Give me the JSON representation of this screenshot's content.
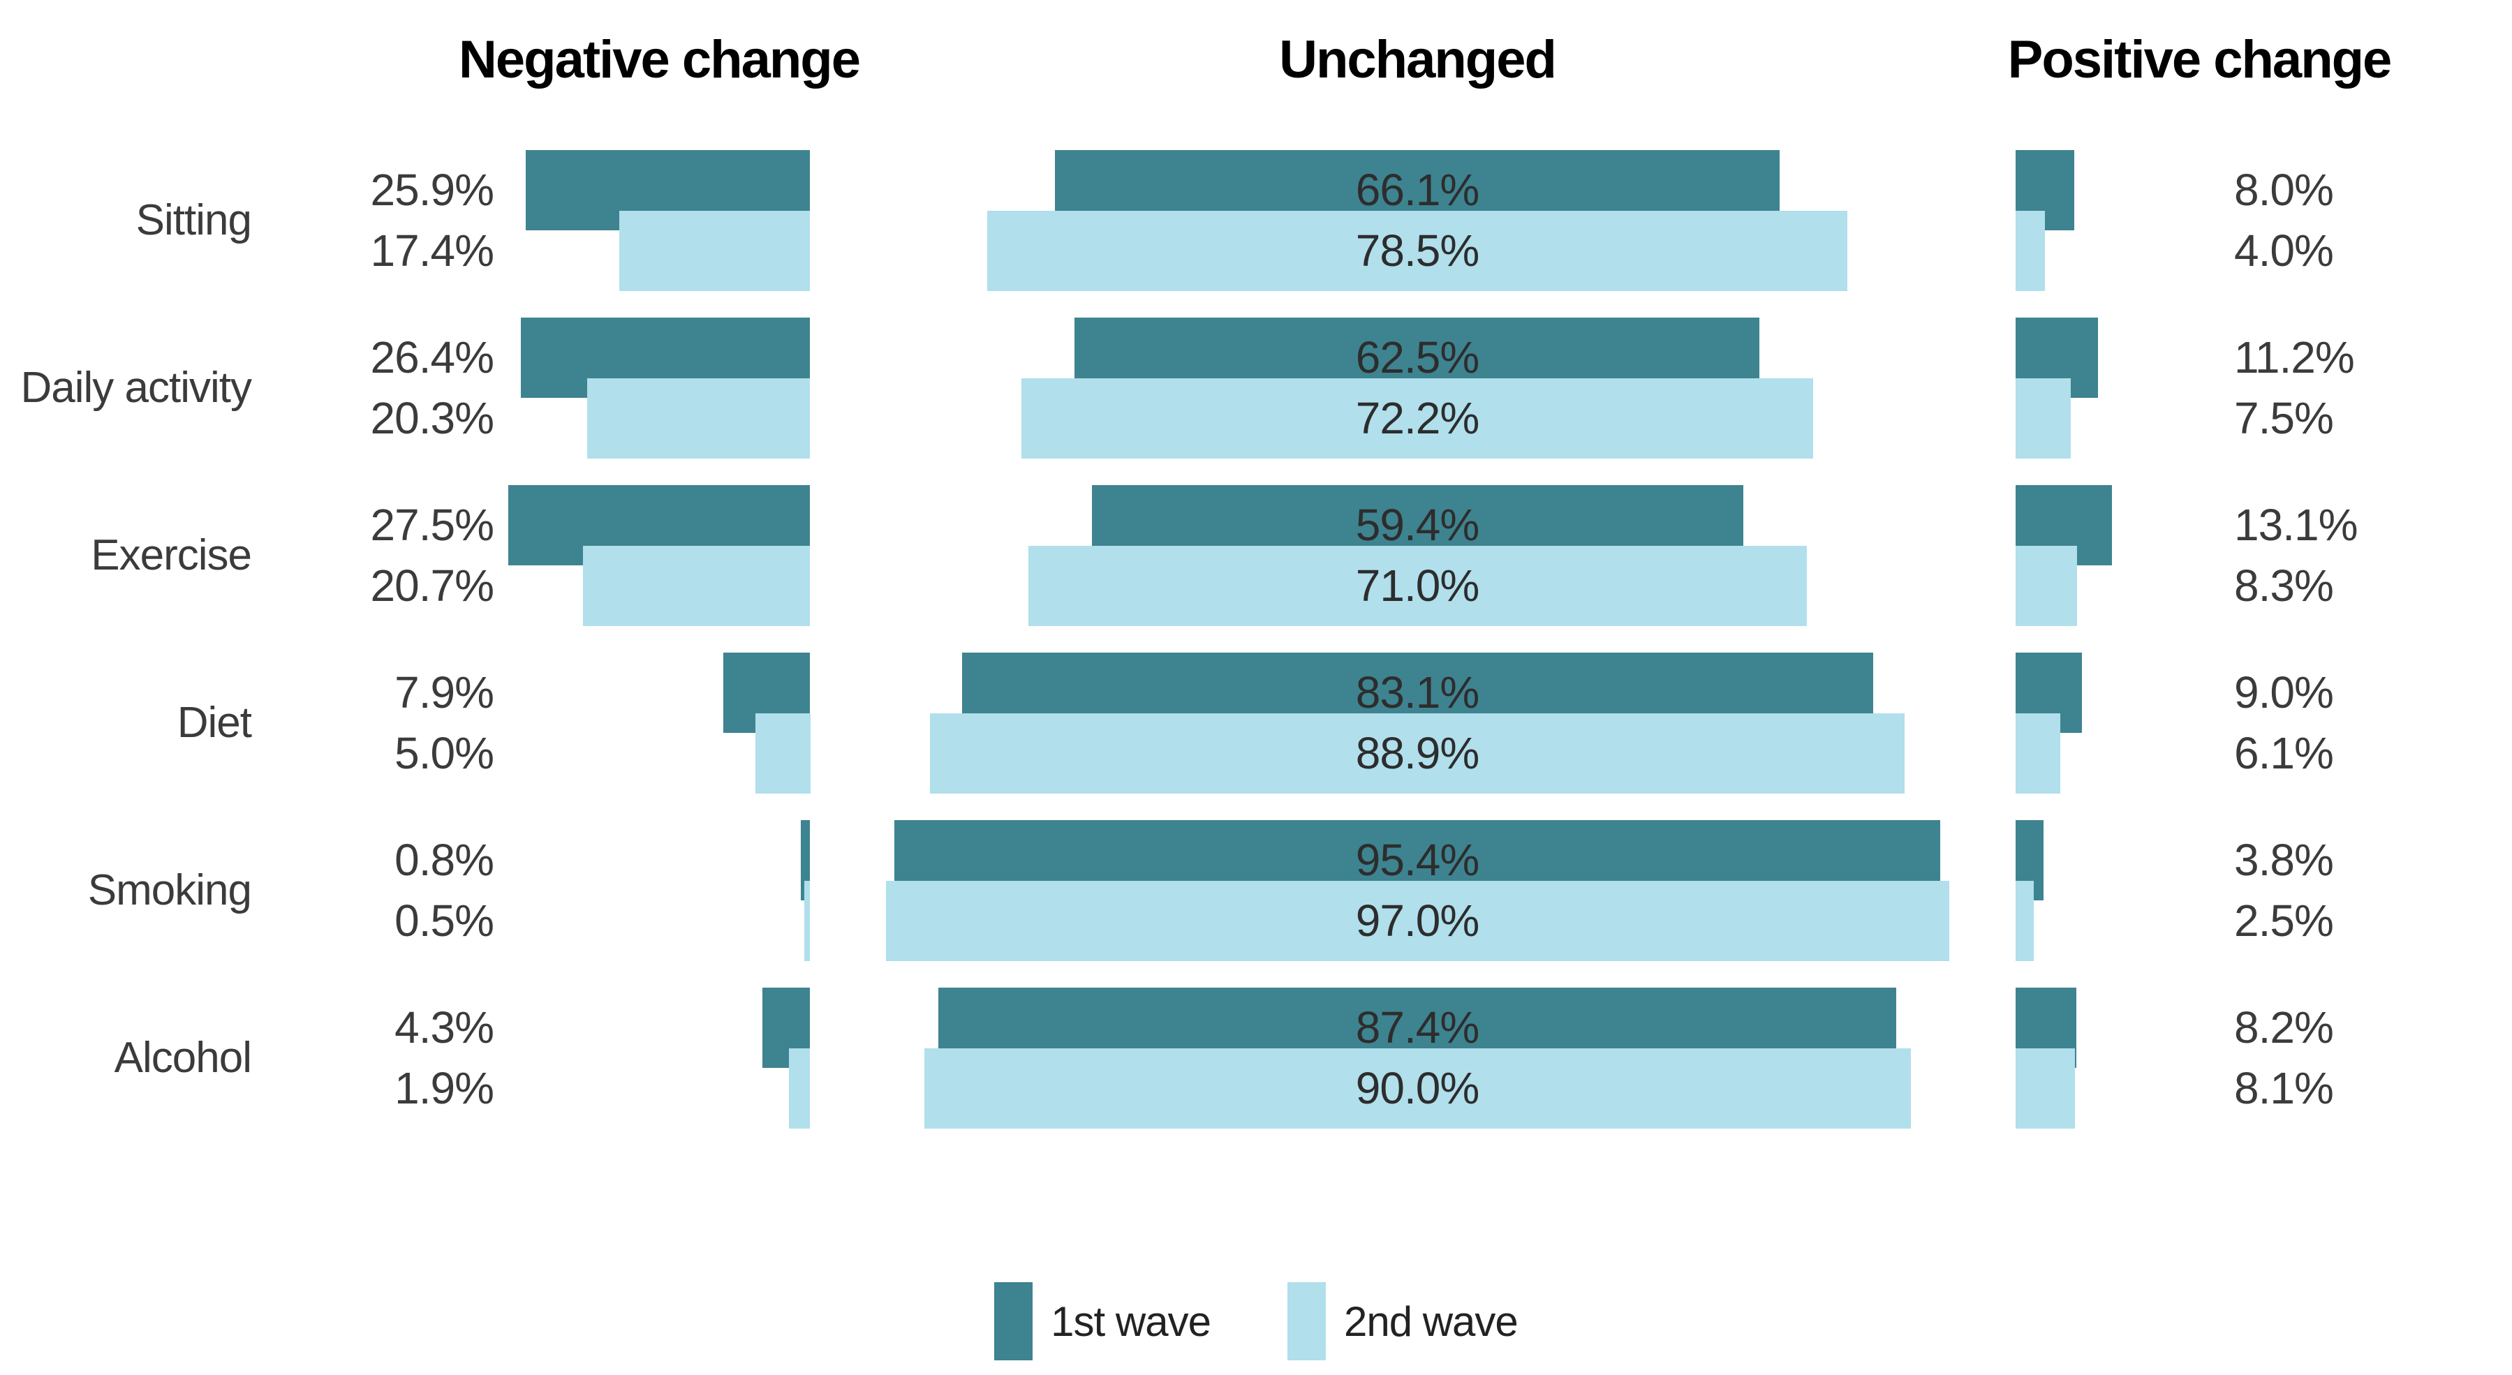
{
  "chart_data": {
    "type": "bar",
    "layout": "faceted horizontal bar pairs, no axes, no gridlines, white background",
    "facets": [
      {
        "id": "negative",
        "label": "Negative change",
        "bar_alignment": "right"
      },
      {
        "id": "unchanged",
        "label": "Unchanged",
        "bar_alignment": "center"
      },
      {
        "id": "positive",
        "label": "Positive change",
        "bar_alignment": "left"
      }
    ],
    "categories": [
      "Sitting",
      "Daily activity",
      "Exercise",
      "Diet",
      "Smoking",
      "Alcohol"
    ],
    "series": [
      {
        "name": "1st wave",
        "color": "#3E8390",
        "values": {
          "negative": [
            25.9,
            26.4,
            27.5,
            7.9,
            0.8,
            4.3
          ],
          "unchanged": [
            66.1,
            62.5,
            59.4,
            83.1,
            95.4,
            87.4
          ],
          "positive": [
            8.0,
            11.2,
            13.1,
            9.0,
            3.8,
            8.2
          ]
        }
      },
      {
        "name": "2nd wave",
        "color": "#B1DFEC",
        "values": {
          "negative": [
            17.4,
            20.3,
            20.7,
            5.0,
            0.5,
            1.9
          ],
          "unchanged": [
            78.5,
            72.2,
            71.0,
            88.9,
            97.0,
            90.0
          ],
          "positive": [
            4.0,
            7.5,
            8.3,
            6.1,
            2.5,
            8.1
          ]
        }
      }
    ],
    "value_suffix": "%",
    "value_decimals": 1,
    "value_label_placement": {
      "negative": "outside left of panel",
      "unchanged": "inside bar, centered",
      "positive": "outside right of panel"
    },
    "legend": {
      "items": [
        "1st wave",
        "2nd wave"
      ],
      "position": "bottom-center"
    },
    "grid": false,
    "axes_visible": false,
    "background": "#FFFFFF",
    "text_colors": {
      "header": "#000000",
      "label": "#3B3B3B",
      "bar_label": "#2D2D2D"
    }
  }
}
